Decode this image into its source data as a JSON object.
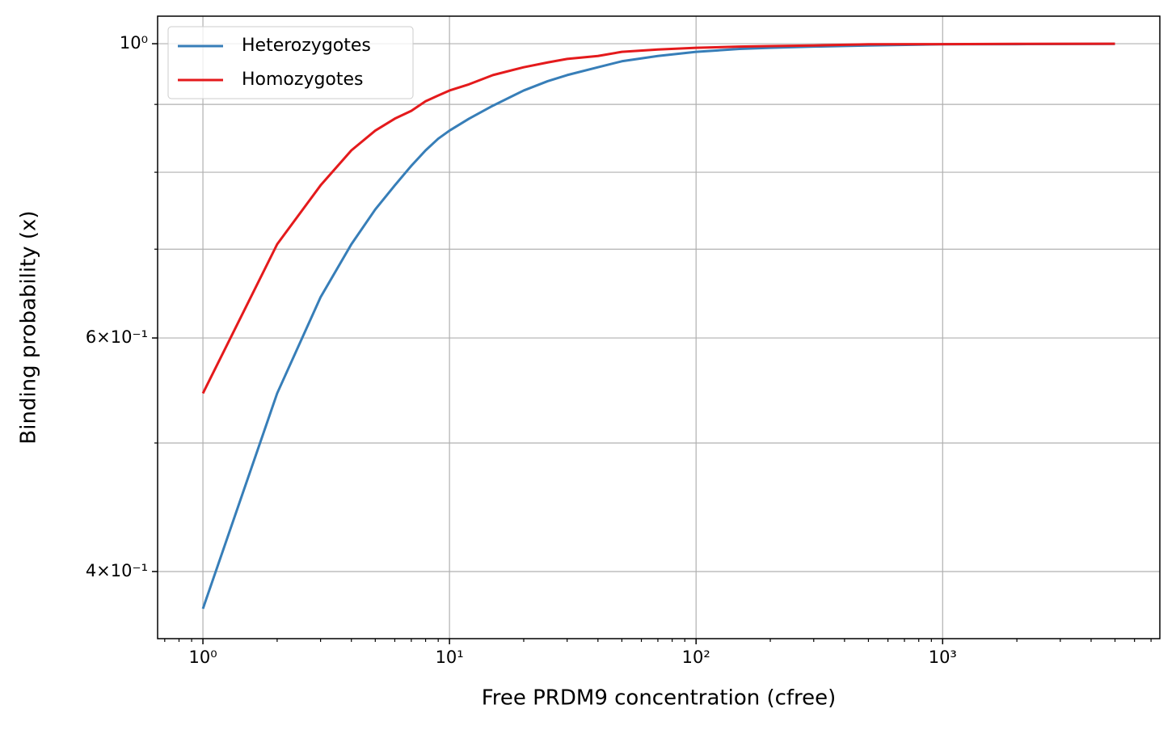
{
  "chart_data": {
    "type": "line",
    "xlabel": "Free PRDM9 concentration (cfree)",
    "ylabel": "Binding probability (x)",
    "x": [
      1,
      2,
      3,
      4,
      5,
      6,
      7,
      8,
      9,
      10,
      12,
      15,
      20,
      25,
      30,
      40,
      50,
      70,
      100,
      150,
      200,
      300,
      500,
      1000,
      2000,
      5000
    ],
    "series": [
      {
        "name": "Heterozygotes",
        "color": "#377eb8",
        "values": [
          0.375,
          0.545,
          0.644,
          0.706,
          0.75,
          0.782,
          0.809,
          0.831,
          0.848,
          0.86,
          0.878,
          0.898,
          0.922,
          0.937,
          0.947,
          0.96,
          0.97,
          0.979,
          0.986,
          0.991,
          0.993,
          0.995,
          0.997,
          0.999,
          0.9993,
          0.9997
        ]
      },
      {
        "name": "Homozygotes",
        "color": "#e41a1c",
        "values": [
          0.545,
          0.706,
          0.782,
          0.831,
          0.86,
          0.878,
          0.89,
          0.905,
          0.914,
          0.922,
          0.932,
          0.947,
          0.96,
          0.968,
          0.974,
          0.979,
          0.986,
          0.99,
          0.993,
          0.995,
          0.996,
          0.997,
          0.999,
          0.9993,
          0.9997,
          0.9999
        ]
      }
    ],
    "xscale": "log",
    "yscale": "log",
    "xlim": [
      0.655,
      7600
    ],
    "ylim": [
      0.356,
      1.049
    ],
    "xticks": [
      {
        "value": 1,
        "label": "10⁰"
      },
      {
        "value": 10,
        "label": "10¹"
      },
      {
        "value": 100,
        "label": "10²"
      },
      {
        "value": 1000,
        "label": "10³"
      }
    ],
    "xminorticks": [
      0.7,
      0.8,
      0.9,
      2,
      3,
      4,
      5,
      6,
      7,
      8,
      9,
      20,
      30,
      40,
      50,
      60,
      70,
      80,
      90,
      200,
      300,
      400,
      500,
      600,
      700,
      800,
      900,
      2000,
      3000,
      4000,
      5000,
      6000,
      7000
    ],
    "yticks": [
      {
        "value": 0.4,
        "label": "4×10⁻¹"
      },
      {
        "value": 0.6,
        "label": "6×10⁻¹"
      },
      {
        "value": 1,
        "label": "10⁰"
      }
    ],
    "yminorticks": [
      0.5,
      0.7,
      0.8,
      0.9
    ],
    "grid": true,
    "legend": "upper left"
  }
}
